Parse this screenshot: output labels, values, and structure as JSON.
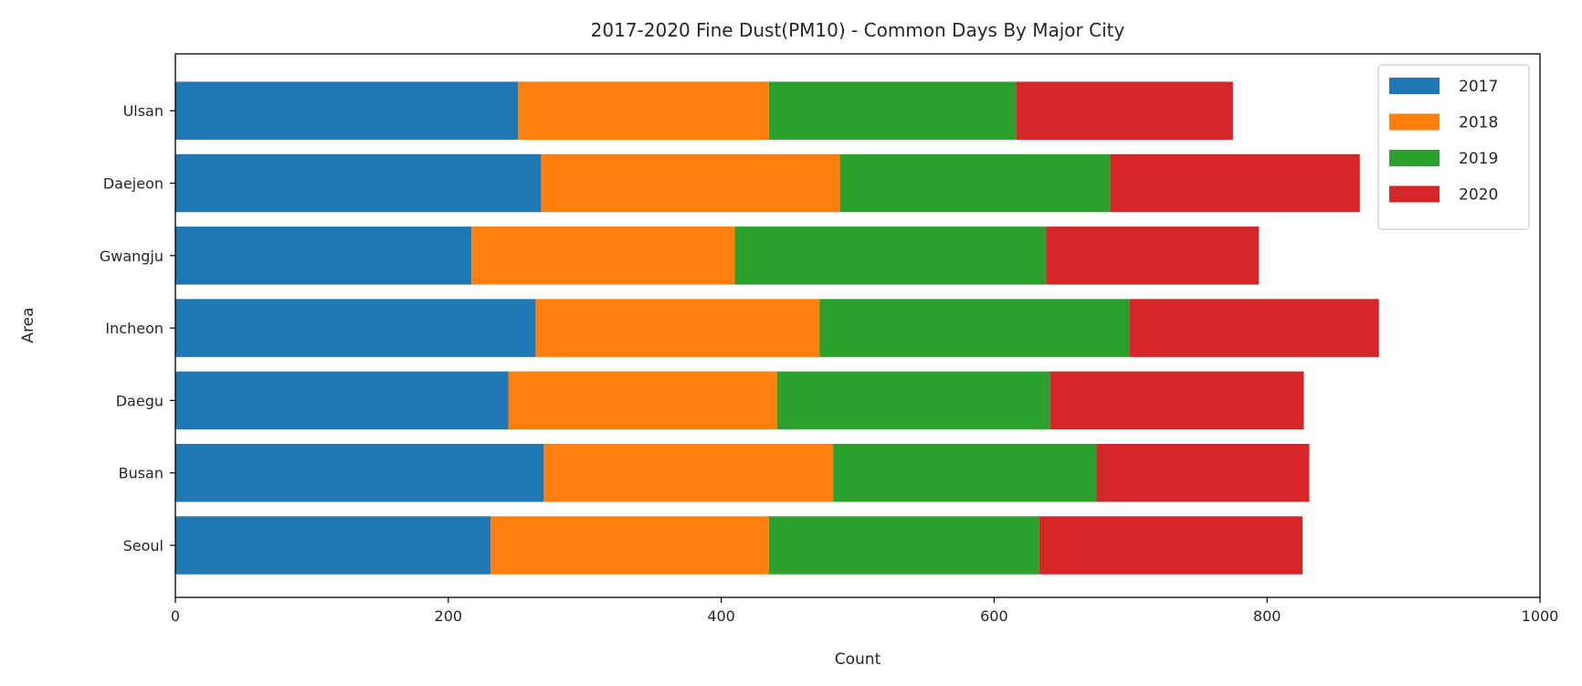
{
  "chart_data": {
    "type": "bar",
    "orientation": "horizontal",
    "stacked": true,
    "title": "2017-2020 Fine Dust(PM10) - Common Days By Major City",
    "xlabel": "Count",
    "ylabel": "Area",
    "xlim": [
      0,
      1000
    ],
    "xticks": [
      "0",
      "200",
      "400",
      "600",
      "800",
      "1000"
    ],
    "grid": false,
    "legend_position": "top-right",
    "categories": [
      "Seoul",
      "Busan",
      "Daegu",
      "Incheon",
      "Gwangju",
      "Daejeon",
      "Ulsan"
    ],
    "series": [
      {
        "name": "2017",
        "color": "#1f77b4",
        "values": [
          231,
          270,
          244,
          264,
          217,
          268,
          251
        ]
      },
      {
        "name": "2018",
        "color": "#ff7f0e",
        "values": [
          204,
          212,
          197,
          208,
          193,
          219,
          184
        ]
      },
      {
        "name": "2019",
        "color": "#2ca02c",
        "values": [
          198,
          193,
          200,
          227,
          228,
          198,
          181
        ]
      },
      {
        "name": "2020",
        "color": "#d62728",
        "values": [
          193,
          156,
          186,
          183,
          156,
          183,
          159
        ]
      }
    ]
  }
}
